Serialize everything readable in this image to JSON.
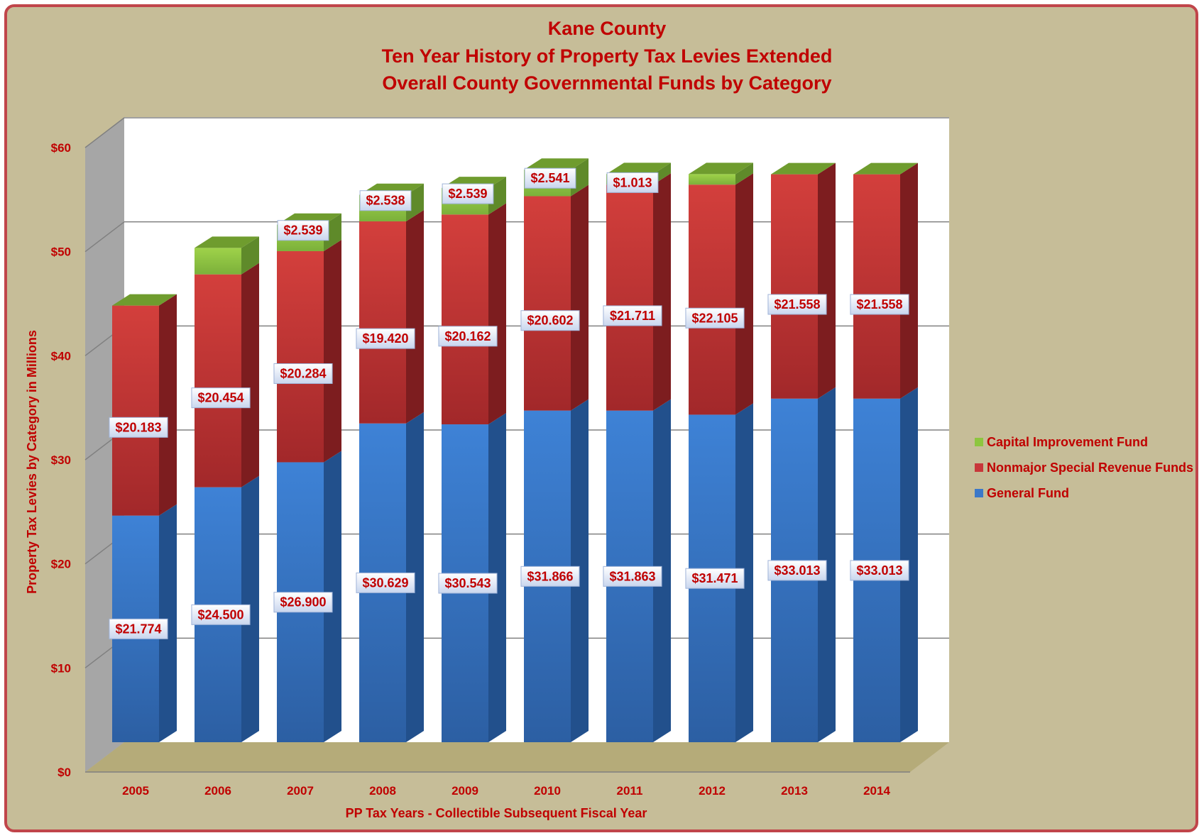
{
  "chart_data": {
    "type": "bar",
    "stacked": true,
    "three_d": true,
    "title": [
      "Kane County",
      "Ten Year History of Property Tax Levies Extended",
      "Overall County Governmental Funds by Category"
    ],
    "xlabel": "PP Tax Years - Collectible Subsequent Fiscal Year",
    "ylabel": "Property Tax Levies by Category in Millions",
    "ylim": [
      0,
      60
    ],
    "yticks": [
      0,
      10,
      20,
      30,
      40,
      50,
      60
    ],
    "ytick_labels": [
      "$0",
      "$10",
      "$20",
      "$30",
      "$40",
      "$50",
      "$60"
    ],
    "grid": true,
    "legend_position": "right",
    "categories": [
      "2005",
      "2006",
      "2007",
      "2008",
      "2009",
      "2010",
      "2011",
      "2012",
      "2013",
      "2014"
    ],
    "series": [
      {
        "name": "General Fund",
        "color": "#3b78c8",
        "values": [
          21.774,
          24.5,
          26.9,
          30.629,
          30.543,
          31.866,
          31.863,
          31.471,
          33.013,
          33.013
        ],
        "labels": [
          "$21.774",
          "$24.500",
          "$26.900",
          "$30.629",
          "$30.543",
          "$31.866",
          "$31.863",
          "$31.471",
          "$33.013",
          "$33.013"
        ]
      },
      {
        "name": "Nonmajor Special Revenue Funds",
        "color": "#c8373a",
        "values": [
          20.183,
          20.454,
          20.284,
          19.42,
          20.162,
          20.602,
          21.711,
          22.105,
          21.558,
          21.558
        ],
        "labels": [
          "$20.183",
          "$20.454",
          "$20.284",
          "$19.420",
          "$20.162",
          "$20.602",
          "$21.711",
          "$22.105",
          "$21.558",
          "$21.558"
        ]
      },
      {
        "name": "Capital Improvement Fund",
        "color": "#8dc63f",
        "values": [
          0,
          2.539,
          2.539,
          2.538,
          2.539,
          2.541,
          1.013,
          1.013,
          0,
          0
        ],
        "labels": [
          "",
          "",
          "$2.539",
          "$2.538",
          "$2.539",
          "$2.541",
          "$1.013",
          "",
          "",
          ""
        ]
      }
    ],
    "legend_order": [
      "Capital Improvement Fund",
      "Nonmajor Special Revenue Funds",
      "General Fund"
    ]
  },
  "colors": {
    "background": "#c6bd98",
    "frame_border": "#c0454a",
    "text": "#c00000",
    "plot_back_wall": "#ffffff",
    "plot_side_wall": "#a6a6a6",
    "floor": "#b5ab79",
    "gridline": "#808080"
  }
}
